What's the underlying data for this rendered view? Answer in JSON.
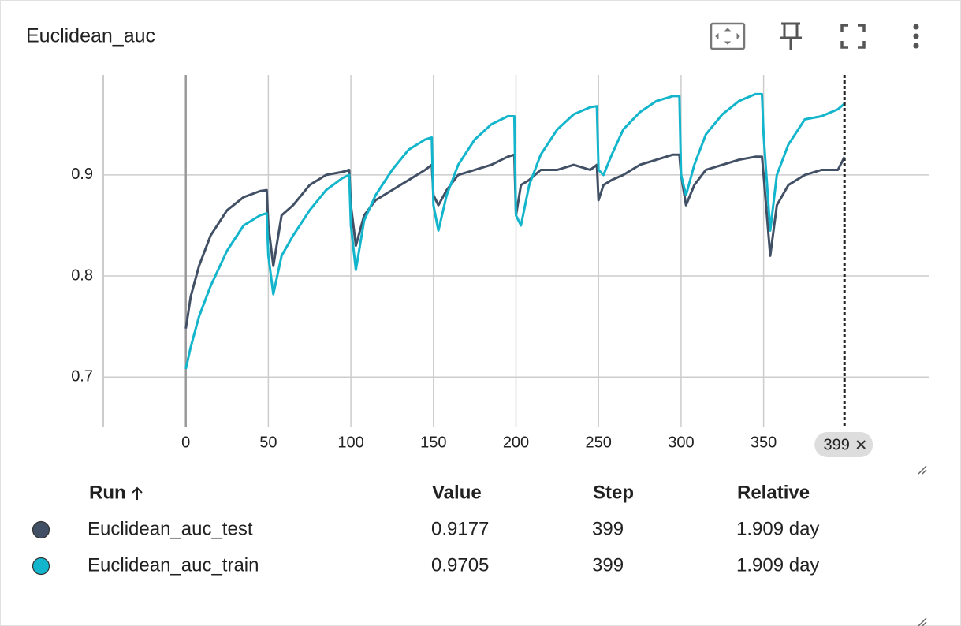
{
  "chart_data": {
    "type": "line",
    "title": "Euclidean_auc",
    "x": [
      0,
      3,
      8,
      15,
      25,
      35,
      45,
      49,
      50,
      53,
      58,
      65,
      75,
      85,
      95,
      99,
      100,
      103,
      108,
      115,
      125,
      135,
      145,
      149,
      150,
      153,
      158,
      165,
      175,
      185,
      195,
      199,
      200,
      203,
      208,
      215,
      225,
      235,
      245,
      249,
      250,
      253,
      258,
      265,
      275,
      285,
      295,
      299,
      300,
      303,
      308,
      315,
      325,
      335,
      345,
      349,
      350,
      354,
      358,
      365,
      375,
      385,
      395,
      399
    ],
    "series": [
      {
        "name": "Euclidean_auc_test",
        "color": "#425066",
        "values": [
          0.748,
          0.78,
          0.81,
          0.84,
          0.865,
          0.878,
          0.884,
          0.885,
          0.85,
          0.81,
          0.86,
          0.87,
          0.89,
          0.9,
          0.903,
          0.905,
          0.87,
          0.83,
          0.86,
          0.875,
          0.885,
          0.895,
          0.905,
          0.91,
          0.88,
          0.87,
          0.885,
          0.9,
          0.905,
          0.91,
          0.918,
          0.92,
          0.86,
          0.89,
          0.895,
          0.905,
          0.905,
          0.91,
          0.905,
          0.91,
          0.875,
          0.89,
          0.895,
          0.9,
          0.91,
          0.915,
          0.92,
          0.92,
          0.9,
          0.87,
          0.89,
          0.905,
          0.91,
          0.915,
          0.918,
          0.918,
          0.9,
          0.82,
          0.87,
          0.89,
          0.9,
          0.905,
          0.905,
          0.9177
        ]
      },
      {
        "name": "Euclidean_auc_train",
        "color": "#12b5cb",
        "values": [
          0.708,
          0.73,
          0.76,
          0.79,
          0.825,
          0.85,
          0.86,
          0.862,
          0.82,
          0.782,
          0.82,
          0.84,
          0.865,
          0.885,
          0.897,
          0.9,
          0.85,
          0.806,
          0.855,
          0.88,
          0.905,
          0.925,
          0.935,
          0.937,
          0.87,
          0.845,
          0.88,
          0.91,
          0.935,
          0.95,
          0.958,
          0.958,
          0.86,
          0.85,
          0.89,
          0.92,
          0.945,
          0.96,
          0.967,
          0.968,
          0.905,
          0.9,
          0.92,
          0.945,
          0.962,
          0.973,
          0.978,
          0.978,
          0.9,
          0.88,
          0.91,
          0.94,
          0.96,
          0.973,
          0.98,
          0.98,
          0.94,
          0.845,
          0.9,
          0.93,
          0.955,
          0.958,
          0.965,
          0.9705
        ]
      }
    ],
    "xlim": [
      -50,
      450
    ],
    "ylim": [
      0.651,
      0.999
    ],
    "xticks": [
      0,
      50,
      100,
      150,
      200,
      250,
      300,
      350
    ],
    "yticks": [
      0.7,
      0.8,
      0.9
    ],
    "grid": true,
    "cursor": 399
  },
  "table": {
    "headers": [
      "Run",
      "Value",
      "Step",
      "Relative"
    ],
    "rows": [
      [
        "Euclidean_auc_test",
        0.9177,
        399,
        "1.909 day"
      ],
      [
        "Euclidean_auc_train",
        0.9705,
        399,
        "1.909 day"
      ]
    ]
  }
}
